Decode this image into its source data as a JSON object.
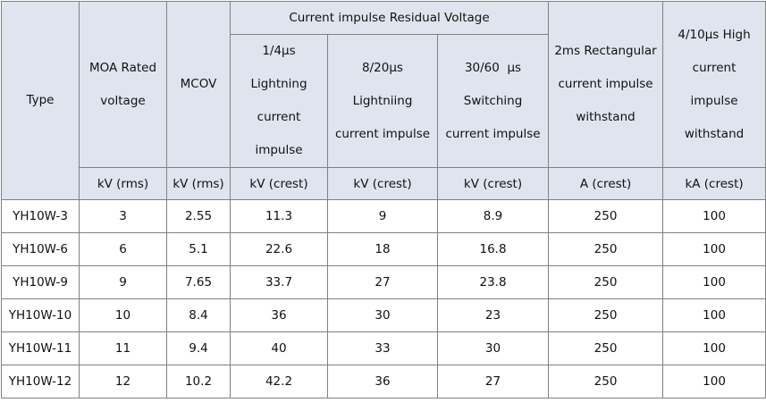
{
  "table": {
    "group_header": "Current impulse Residual Voltage",
    "columns": [
      [
        "Type"
      ],
      [
        "MOA Rated",
        "voltage"
      ],
      [
        "MCOV"
      ],
      [
        "1/4μs",
        "Lightning",
        "current",
        "impulse"
      ],
      [
        "8/20μs",
        "Lightniing",
        "current impulse"
      ],
      [
        "30/60  μs",
        "Switching",
        "current impulse"
      ],
      [
        "2ms Rectangular",
        "current impulse",
        "withstand"
      ],
      [
        "4/10μs High",
        "current",
        "impulse",
        "withstand"
      ]
    ],
    "units": [
      "kV (rms)",
      "kV (rms)",
      "kV (crest)",
      "kV (crest)",
      "kV (crest)",
      "A (crest)",
      "kA (crest)"
    ],
    "rows": [
      [
        "YH10W-3",
        3,
        2.55,
        11.3,
        9,
        8.9,
        250,
        100
      ],
      [
        "YH10W-6",
        6,
        5.1,
        22.6,
        18,
        16.8,
        250,
        100
      ],
      [
        "YH10W-9",
        9,
        7.65,
        33.7,
        27,
        23.8,
        250,
        100
      ],
      [
        "YH10W-10",
        10,
        8.4,
        36,
        30,
        23,
        250,
        100
      ],
      [
        "YH10W-11",
        11,
        9.4,
        40,
        33,
        30,
        250,
        100
      ],
      [
        "YH10W-12",
        12,
        10.2,
        42.2,
        36,
        27,
        250,
        100
      ]
    ]
  }
}
